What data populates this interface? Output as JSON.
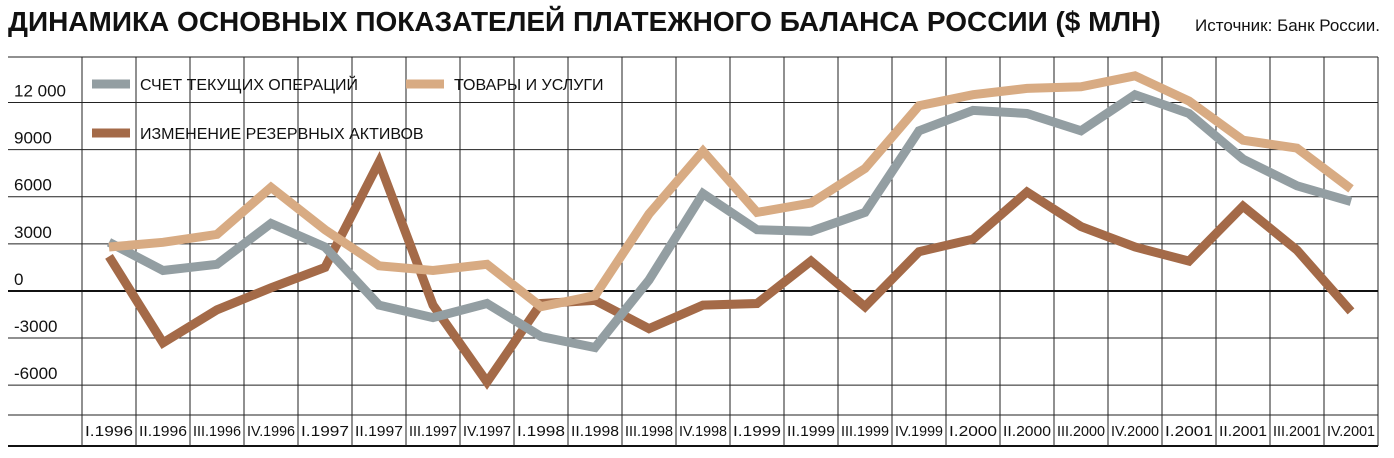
{
  "title": "ДИНАМИКА ОСНОВНЫХ ПОКАЗАТЕЛЕЙ ПЛАТЕЖНОГО БАЛАНСА РОССИИ ($ МЛН)",
  "source": "Источник: Банк России.",
  "chart_data": {
    "type": "line",
    "categories": [
      "I.1996",
      "II.1996",
      "III.1996",
      "IV.1996",
      "I.1997",
      "II.1997",
      "III.1997",
      "IV.1997",
      "I.1998",
      "II.1998",
      "III.1998",
      "IV.1998",
      "I.1999",
      "II.1999",
      "III.1999",
      "IV.1999",
      "I.2000",
      "II.2000",
      "III.2000",
      "IV.2000",
      "I.2001",
      "II.2001",
      "III.2001",
      "IV.2001"
    ],
    "yticks": [
      12000,
      9000,
      6000,
      3000,
      0,
      -3000,
      -6000
    ],
    "ytick_labels": [
      "12 000",
      "9000",
      "6000",
      "3000",
      "0",
      "-3000",
      "-6000"
    ],
    "ylim": [
      -7900,
      14900
    ],
    "grid": true,
    "legend": "top-left",
    "series": [
      {
        "name": "СЧЕТ ТЕКУЩИХ ОПЕРАЦИЙ",
        "color": "#939ea2",
        "values": [
          3100,
          1300,
          1700,
          4300,
          2800,
          -900,
          -1700,
          -800,
          -2900,
          -3600,
          700,
          6200,
          3900,
          3800,
          5000,
          10200,
          11500,
          11300,
          10200,
          12500,
          11300,
          8400,
          6700,
          5700
        ]
      },
      {
        "name": "ТОВАРЫ И УСЛУГИ",
        "color": "#d8ab83",
        "values": [
          2800,
          3100,
          3600,
          6600,
          3900,
          1600,
          1300,
          1700,
          -1000,
          -300,
          4900,
          8900,
          5000,
          5600,
          7800,
          11800,
          12500,
          12900,
          13000,
          13700,
          12100,
          9600,
          9100,
          6500
        ]
      },
      {
        "name": "ИЗМЕНЕНИЕ РЕЗЕРВНЫХ АКТИВОВ",
        "color": "#a46a48",
        "values": [
          2200,
          -3300,
          -1200,
          200,
          1500,
          8200,
          -900,
          -5800,
          -800,
          -600,
          -2400,
          -900,
          -800,
          1900,
          -1000,
          2500,
          3300,
          6300,
          4100,
          2800,
          1900,
          5400,
          2600,
          -1300
        ]
      }
    ]
  }
}
